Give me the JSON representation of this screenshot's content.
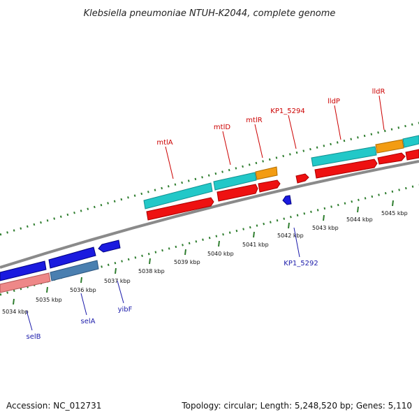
{
  "title": "Klebsiella pneumoniae NTUH-K2044, complete genome",
  "footer": {
    "accession": "Accession: NC_012731",
    "summary": "Topology: circular; Length: 5,248,520 bp; Genes: 5,110"
  },
  "colors": {
    "backbone": "#8a8a8a",
    "tick_dots": "#2e7d2e",
    "forward_label": "#cc0000",
    "reverse_label": "#1a1aaa",
    "cds_red": "#ee1111",
    "cyan": "#22c8c8",
    "orange": "#f39c12",
    "blue": "#1a1adf",
    "steel": "#4a7fb0",
    "pink": "#ee8888"
  },
  "chart_data": {
    "type": "linear-genome-map",
    "scale_unit": "kbp",
    "scale_ticks": [
      "5034 kbp",
      "5035 kbp",
      "5036 kbp",
      "5037 kbp",
      "5038 kbp",
      "5039 kbp",
      "5040 kbp",
      "5041 kbp",
      "5042 kbp",
      "5043 kbp",
      "5044 kbp",
      "5045 kbp"
    ],
    "forward_labels": [
      "mtlA",
      "mtlD",
      "mtlR",
      "KP1_5294",
      "lldP",
      "lldR"
    ],
    "reverse_labels": [
      "selB",
      "selA",
      "yibF",
      "KP1_5292"
    ]
  }
}
